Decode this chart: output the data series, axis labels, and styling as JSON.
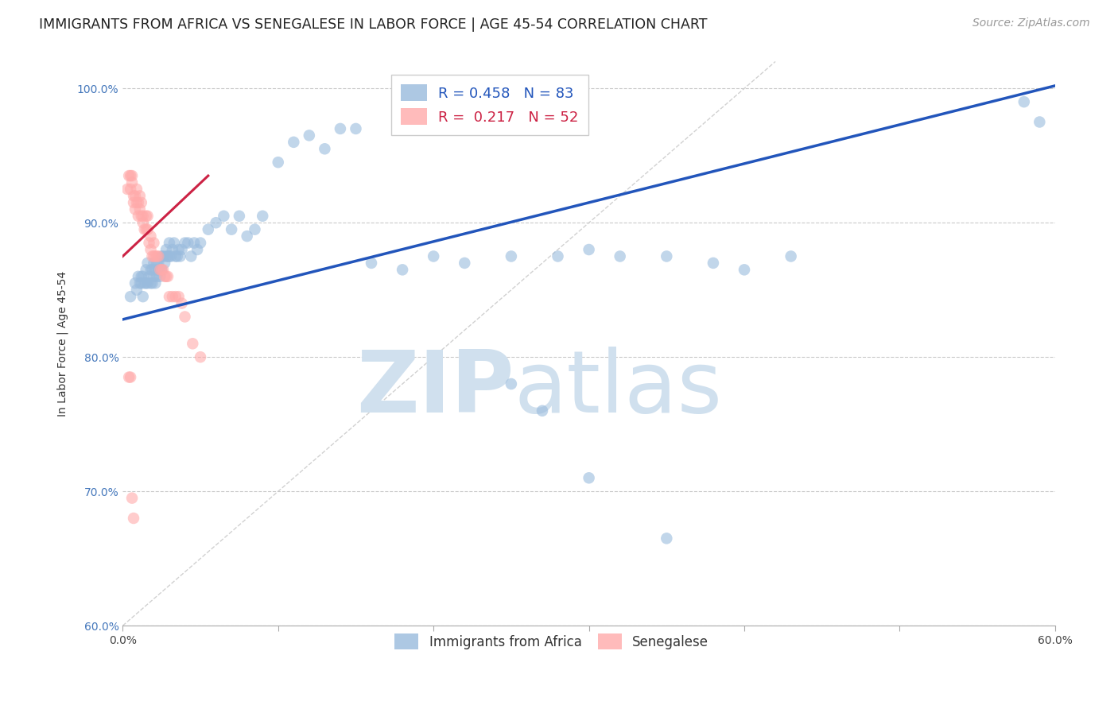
{
  "title": "IMMIGRANTS FROM AFRICA VS SENEGALESE IN LABOR FORCE | AGE 45-54 CORRELATION CHART",
  "source": "Source: ZipAtlas.com",
  "ylabel": "In Labor Force | Age 45-54",
  "xlim": [
    0.0,
    0.6
  ],
  "ylim": [
    0.6,
    1.02
  ],
  "xticks": [
    0.0,
    0.1,
    0.2,
    0.3,
    0.4,
    0.5,
    0.6
  ],
  "xticklabels_show": [
    "0.0%",
    "",
    "",
    "",
    "",
    "",
    "60.0%"
  ],
  "yticks": [
    0.6,
    0.7,
    0.8,
    0.9,
    1.0
  ],
  "yticklabels": [
    "60.0%",
    "70.0%",
    "80.0%",
    "90.0%",
    "100.0%"
  ],
  "blue_color": "#99BBDD",
  "pink_color": "#FFAAAA",
  "blue_line_color": "#2255BB",
  "pink_line_color": "#CC2244",
  "ref_line_color": "#CCCCCC",
  "grid_color": "#BBBBBB",
  "R_blue": "0.458",
  "N_blue": "83",
  "R_pink": "0.217",
  "N_pink": "52",
  "blue_scatter_x": [
    0.005,
    0.008,
    0.009,
    0.01,
    0.011,
    0.012,
    0.012,
    0.013,
    0.013,
    0.014,
    0.015,
    0.015,
    0.016,
    0.016,
    0.017,
    0.018,
    0.018,
    0.019,
    0.019,
    0.02,
    0.02,
    0.021,
    0.021,
    0.022,
    0.022,
    0.023,
    0.023,
    0.024,
    0.025,
    0.025,
    0.026,
    0.027,
    0.028,
    0.028,
    0.029,
    0.03,
    0.03,
    0.031,
    0.032,
    0.033,
    0.034,
    0.035,
    0.036,
    0.037,
    0.038,
    0.04,
    0.042,
    0.044,
    0.046,
    0.048,
    0.05,
    0.055,
    0.06,
    0.065,
    0.07,
    0.075,
    0.08,
    0.085,
    0.09,
    0.1,
    0.11,
    0.12,
    0.13,
    0.14,
    0.15,
    0.16,
    0.18,
    0.2,
    0.22,
    0.25,
    0.28,
    0.3,
    0.32,
    0.35,
    0.38,
    0.4,
    0.43,
    0.25,
    0.27,
    0.3,
    0.35,
    0.58,
    0.59
  ],
  "blue_scatter_y": [
    0.845,
    0.855,
    0.85,
    0.86,
    0.855,
    0.855,
    0.86,
    0.845,
    0.86,
    0.855,
    0.855,
    0.865,
    0.855,
    0.87,
    0.86,
    0.855,
    0.865,
    0.855,
    0.865,
    0.86,
    0.87,
    0.855,
    0.865,
    0.86,
    0.87,
    0.865,
    0.87,
    0.86,
    0.865,
    0.875,
    0.875,
    0.87,
    0.875,
    0.88,
    0.875,
    0.875,
    0.885,
    0.875,
    0.88,
    0.885,
    0.875,
    0.875,
    0.88,
    0.875,
    0.88,
    0.885,
    0.885,
    0.875,
    0.885,
    0.88,
    0.885,
    0.895,
    0.9,
    0.905,
    0.895,
    0.905,
    0.89,
    0.895,
    0.905,
    0.945,
    0.96,
    0.965,
    0.955,
    0.97,
    0.97,
    0.87,
    0.865,
    0.875,
    0.87,
    0.875,
    0.875,
    0.88,
    0.875,
    0.875,
    0.87,
    0.865,
    0.875,
    0.78,
    0.76,
    0.71,
    0.665,
    0.99,
    0.975
  ],
  "pink_scatter_x": [
    0.003,
    0.004,
    0.005,
    0.005,
    0.006,
    0.006,
    0.007,
    0.007,
    0.008,
    0.008,
    0.009,
    0.009,
    0.01,
    0.01,
    0.011,
    0.011,
    0.012,
    0.012,
    0.013,
    0.013,
    0.014,
    0.015,
    0.015,
    0.016,
    0.016,
    0.017,
    0.018,
    0.018,
    0.019,
    0.02,
    0.02,
    0.021,
    0.022,
    0.023,
    0.024,
    0.025,
    0.026,
    0.027,
    0.028,
    0.029,
    0.03,
    0.032,
    0.034,
    0.036,
    0.038,
    0.04,
    0.045,
    0.05,
    0.004,
    0.005,
    0.006,
    0.007
  ],
  "pink_scatter_y": [
    0.925,
    0.935,
    0.925,
    0.935,
    0.93,
    0.935,
    0.915,
    0.92,
    0.91,
    0.92,
    0.915,
    0.925,
    0.905,
    0.915,
    0.91,
    0.92,
    0.905,
    0.915,
    0.905,
    0.9,
    0.895,
    0.895,
    0.905,
    0.895,
    0.905,
    0.885,
    0.88,
    0.89,
    0.875,
    0.875,
    0.885,
    0.875,
    0.875,
    0.875,
    0.865,
    0.865,
    0.865,
    0.86,
    0.86,
    0.86,
    0.845,
    0.845,
    0.845,
    0.845,
    0.84,
    0.83,
    0.81,
    0.8,
    0.785,
    0.785,
    0.695,
    0.68
  ],
  "blue_trend_x": [
    0.0,
    0.6
  ],
  "blue_trend_y": [
    0.828,
    1.002
  ],
  "pink_trend_x": [
    0.0,
    0.055
  ],
  "pink_trend_y": [
    0.875,
    0.935
  ],
  "ref_line_x": [
    0.0,
    0.42
  ],
  "ref_line_y": [
    0.6,
    1.02
  ],
  "watermark_zip": "ZIP",
  "watermark_atlas": "atlas",
  "watermark_color": "#D0E0EE",
  "bg_color": "#FFFFFF",
  "title_fontsize": 12.5,
  "axis_label_fontsize": 10,
  "tick_fontsize": 10,
  "legend_fontsize": 13,
  "source_fontsize": 10
}
